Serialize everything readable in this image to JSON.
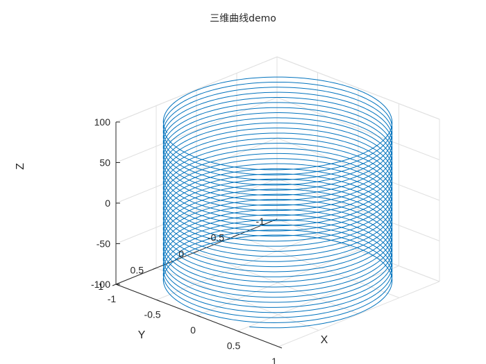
{
  "window": {
    "title": "三维曲线demo"
  },
  "chart_data": {
    "type": "line3d",
    "title": "三维曲线demo",
    "xlabel": "X",
    "ylabel": "Y",
    "zlabel": "Z",
    "xlim": [
      -1,
      1
    ],
    "ylim": [
      -1,
      1
    ],
    "zlim": [
      -100,
      100
    ],
    "x_ticks": [
      "-1",
      "-0.5",
      "0",
      "0.5",
      "1"
    ],
    "y_ticks": [
      "-1",
      "-0.5",
      "0",
      "0.5",
      "1"
    ],
    "z_ticks": [
      "-100",
      "-50",
      "0",
      "50",
      "100"
    ],
    "grid": true,
    "box": "back-panels",
    "line_color": "#0072BD",
    "grid_color": "#e0e0e0",
    "axis_color": "#262626",
    "series": [
      {
        "curve": "x = sin(t), y = cos(t), z = t",
        "t_range": [
          -100,
          100
        ],
        "turns_approx": 31.8
      }
    ]
  }
}
